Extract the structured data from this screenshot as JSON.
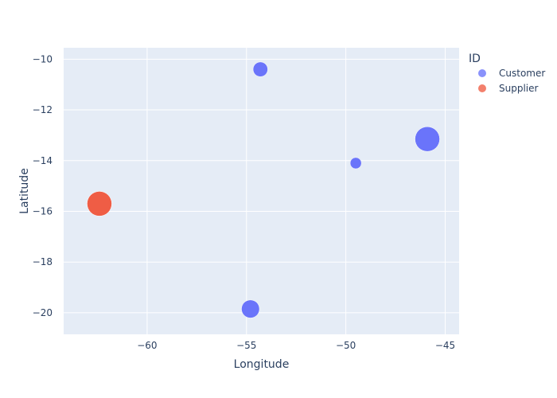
{
  "chart_data": {
    "type": "scatter",
    "xlabel": "Longitude",
    "ylabel": "Latitude",
    "xlim": [
      -64.2,
      -44.3
    ],
    "ylim": [
      -20.85,
      -9.55
    ],
    "x_ticks": [
      -60,
      -55,
      -50,
      -45
    ],
    "y_ticks": [
      -10,
      -12,
      -14,
      -16,
      -18,
      -20
    ],
    "x_tick_labels": [
      "−60",
      "−55",
      "−50",
      "−45"
    ],
    "y_tick_labels": [
      "−10",
      "−12",
      "−14",
      "−16",
      "−18",
      "−20"
    ],
    "grid": true,
    "legend": {
      "title": "ID",
      "placement": "top-right",
      "entries": [
        "Customer",
        "Supplier"
      ]
    },
    "colors": {
      "plot_bg": "#e5ecf6",
      "grid": "#ffffff",
      "Customer": "#636efa",
      "Supplier": "#ef553b"
    },
    "series": [
      {
        "name": "Customer",
        "points": [
          {
            "x": -54.3,
            "y": -10.4,
            "size": 2
          },
          {
            "x": -49.5,
            "y": -14.1,
            "size": 1
          },
          {
            "x": -45.9,
            "y": -13.15,
            "size": 5
          },
          {
            "x": -54.8,
            "y": -19.85,
            "size": 3
          }
        ]
      },
      {
        "name": "Supplier",
        "points": [
          {
            "x": -62.4,
            "y": -15.7,
            "size": 5
          }
        ]
      }
    ]
  }
}
